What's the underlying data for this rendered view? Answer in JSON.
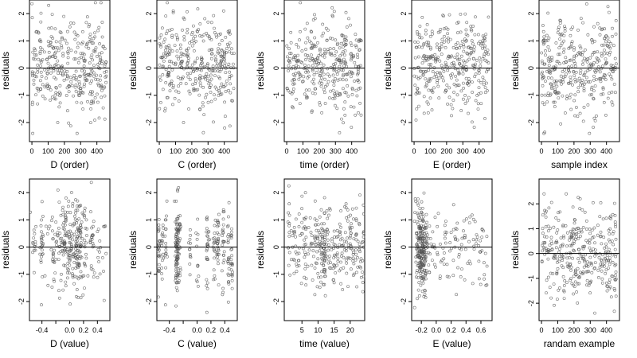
{
  "colors": {
    "points": "#555555",
    "refline": "#000000",
    "frame": "#000000"
  },
  "chart_data": [
    {
      "type": "scatter",
      "xlabel": "D (order)",
      "ylabel": "residuals",
      "xlim": [
        -15,
        480
      ],
      "ylim": [
        -2.7,
        2.5
      ],
      "xticks": [
        0,
        100,
        200,
        300,
        400
      ],
      "yticks": [
        -2,
        -1,
        0,
        1,
        2
      ],
      "refline": 0,
      "dist": {
        "kind": "index",
        "n": 340
      }
    },
    {
      "type": "scatter",
      "xlabel": "C (order)",
      "ylabel": "residuals",
      "xlim": [
        -15,
        480
      ],
      "ylim": [
        -2.7,
        2.5
      ],
      "xticks": [
        0,
        100,
        200,
        300,
        400
      ],
      "yticks": [
        -2,
        -1,
        0,
        1,
        2
      ],
      "refline": 0,
      "dist": {
        "kind": "index",
        "n": 340
      }
    },
    {
      "type": "scatter",
      "xlabel": "time (order)",
      "ylabel": "residuals",
      "xlim": [
        -15,
        480
      ],
      "ylim": [
        -2.7,
        2.5
      ],
      "xticks": [
        0,
        100,
        200,
        300,
        400
      ],
      "yticks": [
        -2,
        -1,
        0,
        1,
        2
      ],
      "refline": 0,
      "dist": {
        "kind": "index",
        "n": 340
      }
    },
    {
      "type": "scatter",
      "xlabel": "E (order)",
      "ylabel": "residuals",
      "xlim": [
        -15,
        480
      ],
      "ylim": [
        -2.7,
        2.5
      ],
      "xticks": [
        0,
        100,
        200,
        300,
        400
      ],
      "yticks": [
        -2,
        -1,
        0,
        1,
        2
      ],
      "refline": 0,
      "dist": {
        "kind": "index",
        "n": 340
      }
    },
    {
      "type": "scatter",
      "xlabel": "sample index",
      "ylabel": "residuals",
      "xlim": [
        -15,
        480
      ],
      "ylim": [
        -2.7,
        2.5
      ],
      "xticks": [
        0,
        100,
        200,
        300,
        400
      ],
      "yticks": [
        -2,
        -1,
        0,
        1,
        2
      ],
      "refline": 0,
      "dist": {
        "kind": "index",
        "n": 340
      }
    },
    {
      "type": "scatter",
      "xlabel": "D (value)",
      "ylabel": "residuals",
      "xlim": [
        -0.58,
        0.58
      ],
      "ylim": [
        -2.7,
        2.5
      ],
      "xticks": [
        -0.4,
        -0.2,
        0,
        0.2,
        0.4
      ],
      "xticklabels": [
        "-0.4",
        "",
        "0.0",
        "0.2",
        "0.4"
      ],
      "yticks": [
        -2,
        -1,
        0,
        1,
        2
      ],
      "refline": 0,
      "dist": {
        "kind": "columns",
        "values": [
          -0.52,
          -0.4,
          -0.32,
          -0.24,
          -0.16,
          -0.08,
          0,
          0.05,
          0.1,
          0.13,
          0.16,
          0.22,
          0.32,
          0.42,
          0.5
        ],
        "weights": [
          1,
          2,
          1,
          2,
          2,
          3,
          3,
          3,
          4,
          4,
          3,
          2,
          2,
          1,
          1
        ],
        "spread": 0.018,
        "n": 340
      }
    },
    {
      "type": "scatter",
      "xlabel": "C (value)",
      "ylabel": "residuals",
      "xlim": [
        -0.58,
        0.58
      ],
      "ylim": [
        -2.7,
        2.5
      ],
      "xticks": [
        -0.4,
        -0.2,
        0,
        0.2,
        0.4
      ],
      "xticklabels": [
        "-0.4",
        "",
        "0.0",
        "0.2",
        "0.4"
      ],
      "yticks": [
        -2,
        -1,
        0,
        1,
        2
      ],
      "refline": 0,
      "dist": {
        "kind": "columns",
        "values": [
          -0.55,
          -0.5,
          -0.45,
          -0.3,
          -0.28,
          -0.25,
          -0.1,
          0,
          0.15,
          0.25,
          0.3,
          0.38,
          0.45,
          0.5
        ],
        "weights": [
          2,
          2,
          1,
          3,
          4,
          2,
          1,
          1,
          2,
          2,
          3,
          2,
          2,
          2
        ],
        "spread": 0.008,
        "n": 340
      }
    },
    {
      "type": "scatter",
      "xlabel": "time (value)",
      "ylabel": "residuals",
      "xlim": [
        -0.5,
        24.5
      ],
      "ylim": [
        -2.7,
        2.5
      ],
      "xticks": [
        5,
        10,
        15,
        20
      ],
      "yticks": [
        -2,
        -1,
        0,
        1,
        2
      ],
      "refline": 0,
      "dist": {
        "kind": "columns",
        "values": [
          1,
          2,
          3,
          4,
          5,
          6,
          7,
          8,
          9,
          10,
          11,
          12,
          13,
          14,
          15,
          16,
          17,
          18,
          19,
          20,
          21,
          22,
          23,
          24
        ],
        "weights": [
          2,
          1,
          2,
          2,
          1,
          2,
          1,
          2,
          2,
          3,
          3,
          5,
          2,
          2,
          2,
          2,
          2,
          2,
          2,
          3,
          2,
          2,
          2,
          3
        ],
        "spread": 0.25,
        "n": 340
      }
    },
    {
      "type": "scatter",
      "xlabel": "E (value)",
      "ylabel": "residuals",
      "xlim": [
        -0.33,
        0.75
      ],
      "ylim": [
        -2.7,
        2.5
      ],
      "xticks": [
        -0.2,
        0,
        0.2,
        0.4,
        0.6
      ],
      "xticklabels": [
        "-0.2",
        "0.0",
        "0.2",
        "0.4",
        "0.6"
      ],
      "yticks": [
        -2,
        -1,
        0,
        1,
        2
      ],
      "refline": 0,
      "dist": {
        "kind": "skew",
        "n": 340
      }
    },
    {
      "type": "scatter",
      "xlabel": "randam example",
      "ylabel": "residuals",
      "xlim": [
        -15,
        480
      ],
      "ylim": [
        -2.7,
        3.0
      ],
      "xticks": [
        0,
        100,
        200,
        300,
        400
      ],
      "yticks": [
        -2,
        -1,
        0,
        1,
        2
      ],
      "refline": 0,
      "dist": {
        "kind": "index",
        "n": 340
      }
    }
  ]
}
